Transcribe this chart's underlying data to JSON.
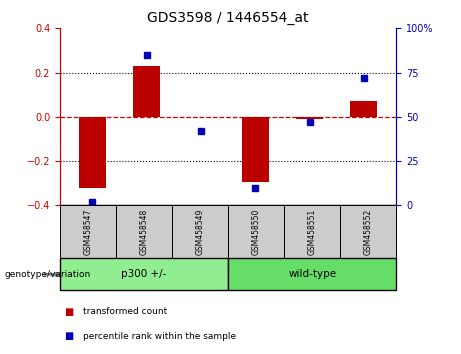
{
  "title": "GDS3598 / 1446554_at",
  "samples": [
    "GSM458547",
    "GSM458548",
    "GSM458549",
    "GSM458550",
    "GSM458551",
    "GSM458552"
  ],
  "red_bars": [
    -0.32,
    0.23,
    0.0,
    -0.295,
    -0.012,
    0.07
  ],
  "blue_dots_pct": [
    2,
    85,
    42,
    10,
    47,
    72
  ],
  "groups": [
    {
      "label": "p300 +/-",
      "indices": [
        0,
        1,
        2
      ],
      "color": "#90EE90"
    },
    {
      "label": "wild-type",
      "indices": [
        3,
        4,
        5
      ],
      "color": "#66DD66"
    }
  ],
  "ylim_left": [
    -0.4,
    0.4
  ],
  "ylim_right": [
    0,
    100
  ],
  "yticks_left": [
    -0.4,
    -0.2,
    0.0,
    0.2,
    0.4
  ],
  "yticks_right": [
    0,
    25,
    50,
    75,
    100
  ],
  "ytick_labels_right": [
    "0",
    "25",
    "50",
    "75",
    "100%"
  ],
  "left_axis_color": "#cc0000",
  "right_axis_color": "#0000bb",
  "bar_color": "#bb0000",
  "dot_color": "#0000bb",
  "header_bg": "#cccccc",
  "zero_line_color": "#cc0000",
  "legend_items": [
    {
      "label": "transformed count",
      "color": "#bb0000"
    },
    {
      "label": "percentile rank within the sample",
      "color": "#0000bb"
    }
  ],
  "group_label": "genotype/variation"
}
